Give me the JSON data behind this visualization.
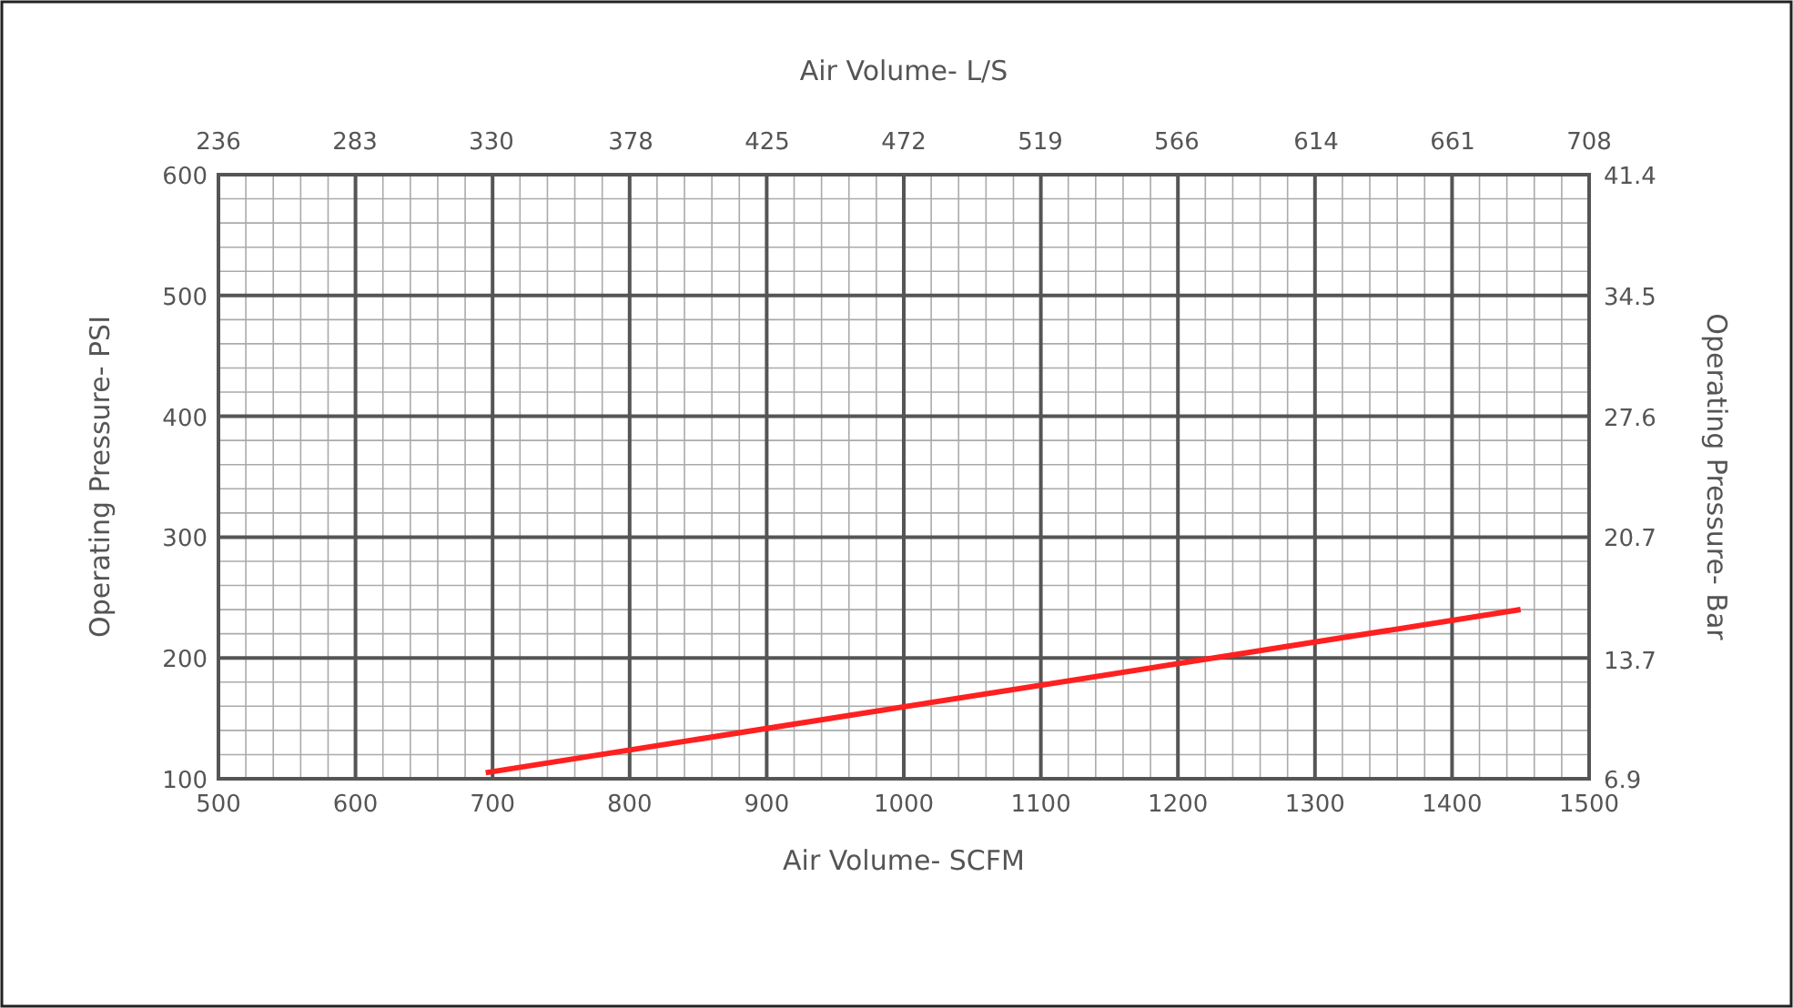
{
  "chart_data": {
    "type": "line",
    "xlabel": "Air Volume- SCFM",
    "ylabel": "Operating Pressure- PSI",
    "y2label": "Operating Pressure- Bar",
    "x2label": "Air Volume- L/S",
    "x": [
      695,
      1450
    ],
    "series": [
      {
        "color": "#ff2020",
        "values": [
          105,
          240
        ]
      }
    ],
    "xlim": [
      500,
      1500
    ],
    "xticks": [
      500,
      600,
      700,
      800,
      900,
      1000,
      1100,
      1200,
      1300,
      1400,
      1500
    ],
    "ylim": [
      100,
      600
    ],
    "yticks": [
      100,
      200,
      300,
      400,
      500,
      600
    ],
    "x2lim": [
      236,
      708
    ],
    "x2ticks": [
      236,
      283,
      330,
      378,
      425,
      472,
      519,
      566,
      614,
      661,
      708
    ],
    "y2lim": [
      6.9,
      41.4
    ],
    "y2ticks": [
      6.9,
      13.7,
      20.7,
      27.6,
      34.5,
      41.4
    ],
    "grid": true,
    "marker": "none",
    "line_style": "solid"
  }
}
